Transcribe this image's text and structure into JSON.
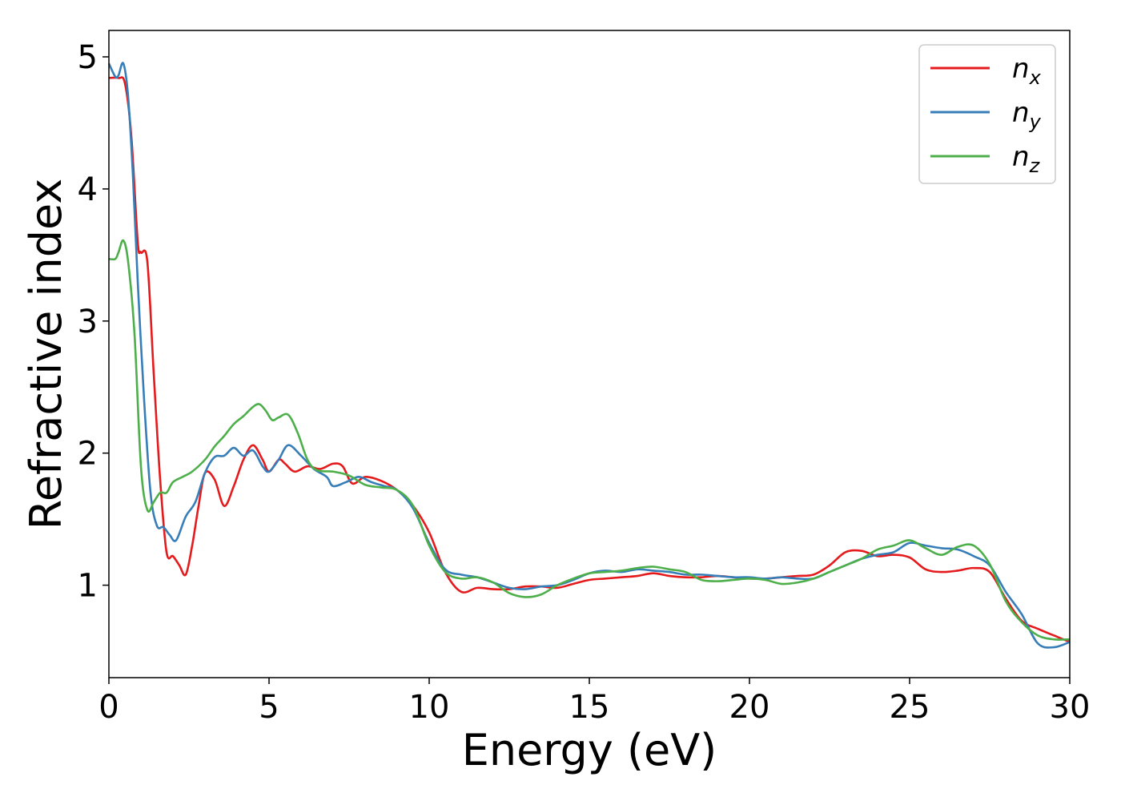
{
  "chart_data": {
    "type": "line",
    "xlabel": "Energy (eV)",
    "ylabel": "Refractive index",
    "xlim": [
      0,
      30
    ],
    "ylim": [
      0.3,
      5.2
    ],
    "xticks": [
      0,
      5,
      10,
      15,
      20,
      25,
      30
    ],
    "yticks": [
      1,
      2,
      3,
      4,
      5
    ],
    "grid": false,
    "legend_position": "top-right",
    "series": [
      {
        "name": "n_x",
        "legend_base": "n",
        "legend_sub": "x",
        "color": "#e41a1c",
        "x": [
          0,
          0.3,
          0.5,
          0.7,
          0.9,
          1.0,
          1.2,
          1.4,
          1.6,
          1.8,
          2.0,
          2.2,
          2.4,
          2.6,
          2.8,
          3.0,
          3.3,
          3.6,
          3.9,
          4.2,
          4.5,
          4.8,
          5.0,
          5.3,
          5.5,
          5.8,
          6.2,
          6.6,
          7.0,
          7.3,
          7.6,
          8.0,
          8.5,
          9.0,
          9.5,
          10.0,
          10.5,
          11.0,
          11.5,
          12.0,
          12.5,
          13.0,
          13.5,
          14.0,
          14.5,
          15.0,
          15.5,
          16.0,
          16.5,
          17.0,
          17.5,
          18.0,
          18.5,
          19.0,
          19.5,
          20.0,
          20.5,
          21.0,
          21.5,
          22.0,
          22.5,
          23.0,
          23.5,
          24.0,
          24.5,
          25.0,
          25.5,
          26.0,
          26.5,
          27.0,
          27.5,
          28.0,
          28.5,
          29.0,
          29.5,
          30.0
        ],
        "y": [
          4.84,
          4.84,
          4.8,
          4.4,
          3.6,
          3.52,
          3.45,
          2.6,
          1.8,
          1.25,
          1.22,
          1.15,
          1.08,
          1.3,
          1.6,
          1.85,
          1.8,
          1.6,
          1.75,
          1.95,
          2.06,
          1.95,
          1.86,
          1.95,
          1.92,
          1.86,
          1.9,
          1.88,
          1.92,
          1.9,
          1.77,
          1.82,
          1.79,
          1.72,
          1.6,
          1.4,
          1.1,
          0.95,
          0.98,
          0.97,
          0.97,
          0.99,
          0.99,
          0.98,
          1.01,
          1.04,
          1.05,
          1.06,
          1.07,
          1.09,
          1.07,
          1.06,
          1.06,
          1.07,
          1.06,
          1.05,
          1.05,
          1.06,
          1.07,
          1.08,
          1.15,
          1.25,
          1.26,
          1.22,
          1.23,
          1.21,
          1.12,
          1.1,
          1.11,
          1.13,
          1.1,
          0.9,
          0.73,
          0.67,
          0.62,
          0.57
        ]
      },
      {
        "name": "n_y",
        "legend_base": "n",
        "legend_sub": "y",
        "color": "#377eb8",
        "x": [
          0,
          0.2,
          0.3,
          0.45,
          0.6,
          0.75,
          0.9,
          1.1,
          1.3,
          1.5,
          1.7,
          1.9,
          2.1,
          2.4,
          2.7,
          3.0,
          3.3,
          3.6,
          3.9,
          4.2,
          4.5,
          4.8,
          5.0,
          5.3,
          5.6,
          6.0,
          6.4,
          6.8,
          7.0,
          7.4,
          7.8,
          8.2,
          8.6,
          9.0,
          9.5,
          10.0,
          10.5,
          11.0,
          11.5,
          12.0,
          12.5,
          13.0,
          13.5,
          14.0,
          14.5,
          15.0,
          15.5,
          16.0,
          16.5,
          17.0,
          17.5,
          18.0,
          18.5,
          19.0,
          19.5,
          20.0,
          20.5,
          21.0,
          21.5,
          22.0,
          22.5,
          23.0,
          23.5,
          24.0,
          24.5,
          25.0,
          25.5,
          26.0,
          26.5,
          27.0,
          27.5,
          28.0,
          28.5,
          29.0,
          29.5,
          30.0
        ],
        "y": [
          4.95,
          4.85,
          4.86,
          4.95,
          4.7,
          4.1,
          3.3,
          2.4,
          1.7,
          1.45,
          1.44,
          1.38,
          1.34,
          1.52,
          1.63,
          1.85,
          1.97,
          1.98,
          2.04,
          1.98,
          2.02,
          1.9,
          1.86,
          1.95,
          2.06,
          1.98,
          1.88,
          1.82,
          1.75,
          1.78,
          1.82,
          1.78,
          1.75,
          1.72,
          1.58,
          1.32,
          1.12,
          1.08,
          1.06,
          1.02,
          0.98,
          0.97,
          0.99,
          1.0,
          1.04,
          1.09,
          1.11,
          1.1,
          1.12,
          1.11,
          1.1,
          1.08,
          1.08,
          1.07,
          1.06,
          1.06,
          1.05,
          1.06,
          1.05,
          1.05,
          1.1,
          1.15,
          1.2,
          1.23,
          1.25,
          1.32,
          1.3,
          1.28,
          1.27,
          1.22,
          1.15,
          0.95,
          0.78,
          0.56,
          0.53,
          0.57
        ]
      },
      {
        "name": "n_z",
        "legend_base": "n",
        "legend_sub": "z",
        "color": "#4daf4a",
        "x": [
          0,
          0.2,
          0.3,
          0.45,
          0.6,
          0.8,
          1.0,
          1.2,
          1.4,
          1.6,
          1.8,
          2.0,
          2.3,
          2.6,
          3.0,
          3.3,
          3.6,
          3.9,
          4.2,
          4.5,
          4.7,
          4.9,
          5.1,
          5.3,
          5.6,
          5.9,
          6.2,
          6.5,
          7.0,
          7.5,
          8.0,
          8.5,
          9.0,
          9.5,
          10.0,
          10.5,
          11.0,
          11.5,
          12.0,
          12.5,
          13.0,
          13.5,
          14.0,
          14.5,
          15.0,
          15.5,
          16.0,
          16.5,
          17.0,
          17.5,
          18.0,
          18.5,
          19.0,
          19.5,
          20.0,
          20.5,
          21.0,
          21.5,
          22.0,
          22.5,
          23.0,
          23.5,
          24.0,
          24.5,
          25.0,
          25.5,
          26.0,
          26.5,
          27.0,
          27.5,
          28.0,
          28.5,
          29.0,
          29.5,
          30.0
        ],
        "y": [
          3.47,
          3.47,
          3.52,
          3.61,
          3.45,
          2.9,
          1.9,
          1.57,
          1.63,
          1.7,
          1.7,
          1.78,
          1.82,
          1.86,
          1.95,
          2.05,
          2.13,
          2.22,
          2.28,
          2.35,
          2.37,
          2.32,
          2.25,
          2.27,
          2.29,
          2.15,
          1.95,
          1.87,
          1.86,
          1.83,
          1.76,
          1.74,
          1.72,
          1.6,
          1.3,
          1.1,
          1.05,
          1.06,
          1.02,
          0.94,
          0.91,
          0.93,
          1.0,
          1.05,
          1.09,
          1.1,
          1.11,
          1.13,
          1.14,
          1.12,
          1.1,
          1.04,
          1.03,
          1.04,
          1.05,
          1.04,
          1.01,
          1.02,
          1.05,
          1.1,
          1.15,
          1.2,
          1.27,
          1.3,
          1.34,
          1.28,
          1.23,
          1.29,
          1.3,
          1.16,
          0.88,
          0.72,
          0.62,
          0.59,
          0.59
        ]
      }
    ]
  }
}
